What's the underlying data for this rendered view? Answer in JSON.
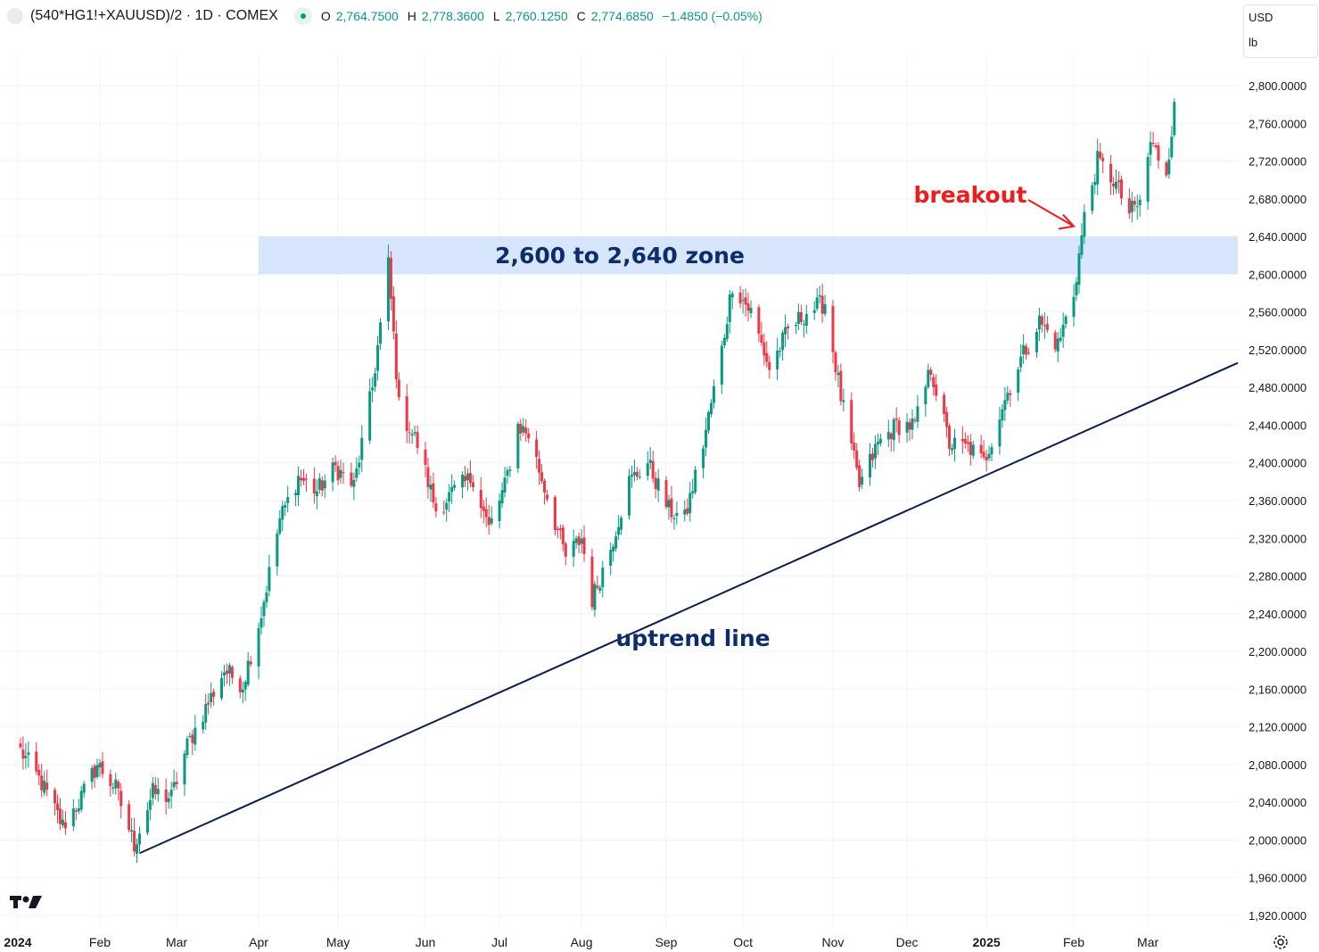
{
  "header": {
    "symbol": "(540*HG1!+XAUUSD)/2 · 1D · COMEX",
    "open_key": "O",
    "open": "2,764.7500",
    "high_key": "H",
    "high": "2,778.3600",
    "low_key": "L",
    "low": "2,760.1250",
    "close_key": "C",
    "close": "2,774.6850",
    "change": "−1.4850 (−0.05%)"
  },
  "units": {
    "currency": "USD",
    "unit": "lb"
  },
  "logo_text": "TV",
  "colors": {
    "up": "#089981",
    "down": "#f23645",
    "trendline": "#0c1d4e",
    "zone": "#d7e5fd",
    "zone_text": "#0c2d6b",
    "breakout": "#ee1c1c",
    "grid": "#f0f3fa",
    "axis_text": "#131722"
  },
  "chart_data": {
    "type": "candlestick",
    "y_axis": {
      "range": [
        1905,
        2830
      ],
      "scale": "linear",
      "ticks": [
        1920,
        1960,
        2000,
        2040,
        2080,
        2120,
        2160,
        2200,
        2240,
        2280,
        2320,
        2360,
        2400,
        2440,
        2480,
        2520,
        2560,
        2600,
        2640,
        2680,
        2720,
        2760,
        2800
      ],
      "tick_labels": [
        "1,920.0000",
        "1,960.0000",
        "2,000.0000",
        "2,040.0000",
        "2,080.0000",
        "2,120.0000",
        "2,160.0000",
        "2,200.0000",
        "2,240.0000",
        "2,280.0000",
        "2,320.0000",
        "2,360.0000",
        "2,400.0000",
        "2,440.0000",
        "2,480.0000",
        "2,520.0000",
        "2,560.0000",
        "2,600.0000",
        "2,640.0000",
        "2,680.0000",
        "2,720.0000",
        "2,760.0000",
        "2,800.0000"
      ]
    },
    "x_axis": {
      "range": [
        "2024-01-01",
        "2025-04-06"
      ],
      "ticks": [
        {
          "date": "2024-01-01",
          "label": "2024",
          "bold": true
        },
        {
          "date": "2024-02-01",
          "label": "Feb"
        },
        {
          "date": "2024-03-01",
          "label": "Mar"
        },
        {
          "date": "2024-04-01",
          "label": "Apr"
        },
        {
          "date": "2024-05-01",
          "label": "May"
        },
        {
          "date": "2024-06-03",
          "label": "Jun"
        },
        {
          "date": "2024-07-01",
          "label": "Jul"
        },
        {
          "date": "2024-08-01",
          "label": "Aug"
        },
        {
          "date": "2024-09-02",
          "label": "Sep"
        },
        {
          "date": "2024-10-01",
          "label": "Oct"
        },
        {
          "date": "2024-11-04",
          "label": "Nov"
        },
        {
          "date": "2024-12-02",
          "label": "Dec"
        },
        {
          "date": "2025-01-01",
          "label": "2025",
          "bold": true
        },
        {
          "date": "2025-02-03",
          "label": "Feb"
        },
        {
          "date": "2025-03-03",
          "label": "Mar"
        }
      ]
    },
    "grid": true,
    "series_anchors": [
      {
        "date": "2024-01-02",
        "close": 2095
      },
      {
        "date": "2024-01-10",
        "close": 2060
      },
      {
        "date": "2024-01-18",
        "close": 2015
      },
      {
        "date": "2024-01-24",
        "close": 2040
      },
      {
        "date": "2024-01-31",
        "close": 2080
      },
      {
        "date": "2024-02-07",
        "close": 2055
      },
      {
        "date": "2024-02-14",
        "close": 1995
      },
      {
        "date": "2024-02-21",
        "close": 2050
      },
      {
        "date": "2024-02-28",
        "close": 2045
      },
      {
        "date": "2024-03-05",
        "close": 2100
      },
      {
        "date": "2024-03-12",
        "close": 2140
      },
      {
        "date": "2024-03-19",
        "close": 2180
      },
      {
        "date": "2024-03-26",
        "close": 2165
      },
      {
        "date": "2024-04-02",
        "close": 2240
      },
      {
        "date": "2024-04-09",
        "close": 2340
      },
      {
        "date": "2024-04-16",
        "close": 2385
      },
      {
        "date": "2024-04-23",
        "close": 2370
      },
      {
        "date": "2024-04-30",
        "close": 2395
      },
      {
        "date": "2024-05-07",
        "close": 2375
      },
      {
        "date": "2024-05-14",
        "close": 2480
      },
      {
        "date": "2024-05-20",
        "close": 2610
      },
      {
        "date": "2024-05-24",
        "close": 2460
      },
      {
        "date": "2024-05-31",
        "close": 2420
      },
      {
        "date": "2024-06-07",
        "close": 2350
      },
      {
        "date": "2024-06-14",
        "close": 2370
      },
      {
        "date": "2024-06-21",
        "close": 2385
      },
      {
        "date": "2024-06-27",
        "close": 2330
      },
      {
        "date": "2024-07-03",
        "close": 2375
      },
      {
        "date": "2024-07-08",
        "close": 2440
      },
      {
        "date": "2024-07-12",
        "close": 2430
      },
      {
        "date": "2024-07-19",
        "close": 2365
      },
      {
        "date": "2024-07-26",
        "close": 2300
      },
      {
        "date": "2024-08-01",
        "close": 2320
      },
      {
        "date": "2024-08-05",
        "close": 2255
      },
      {
        "date": "2024-08-12",
        "close": 2310
      },
      {
        "date": "2024-08-19",
        "close": 2380
      },
      {
        "date": "2024-08-26",
        "close": 2400
      },
      {
        "date": "2024-09-03",
        "close": 2350
      },
      {
        "date": "2024-09-09",
        "close": 2340
      },
      {
        "date": "2024-09-16",
        "close": 2420
      },
      {
        "date": "2024-09-23",
        "close": 2520
      },
      {
        "date": "2024-09-27",
        "close": 2590
      },
      {
        "date": "2024-10-04",
        "close": 2560
      },
      {
        "date": "2024-10-11",
        "close": 2500
      },
      {
        "date": "2024-10-18",
        "close": 2540
      },
      {
        "date": "2024-10-25",
        "close": 2560
      },
      {
        "date": "2024-11-01",
        "close": 2570
      },
      {
        "date": "2024-11-07",
        "close": 2470
      },
      {
        "date": "2024-11-14",
        "close": 2375
      },
      {
        "date": "2024-11-21",
        "close": 2420
      },
      {
        "date": "2024-11-28",
        "close": 2440
      },
      {
        "date": "2024-12-05",
        "close": 2440
      },
      {
        "date": "2024-12-11",
        "close": 2500
      },
      {
        "date": "2024-12-18",
        "close": 2420
      },
      {
        "date": "2024-12-26",
        "close": 2415
      },
      {
        "date": "2024-12-31",
        "close": 2400
      },
      {
        "date": "2025-01-07",
        "close": 2460
      },
      {
        "date": "2025-01-14",
        "close": 2510
      },
      {
        "date": "2025-01-21",
        "close": 2550
      },
      {
        "date": "2025-01-28",
        "close": 2525
      },
      {
        "date": "2025-02-03",
        "close": 2580
      },
      {
        "date": "2025-02-07",
        "close": 2660
      },
      {
        "date": "2025-02-12",
        "close": 2720
      },
      {
        "date": "2025-02-18",
        "close": 2700
      },
      {
        "date": "2025-02-24",
        "close": 2665
      },
      {
        "date": "2025-02-28",
        "close": 2675
      },
      {
        "date": "2025-03-04",
        "close": 2740
      },
      {
        "date": "2025-03-10",
        "close": 2710
      },
      {
        "date": "2025-03-13",
        "close": 2775
      }
    ],
    "zone": {
      "from": 2600,
      "to": 2640,
      "start": "2024-04-01",
      "label": "2,600 to 2,640 zone"
    },
    "trendline": {
      "start": {
        "date": "2024-02-16",
        "value": 1986
      },
      "end": {
        "date": "2025-04-06",
        "value": 2506
      },
      "label": "uptrend line"
    },
    "annotation": {
      "label": "breakout",
      "target": {
        "date": "2025-02-04",
        "value": 2650
      }
    }
  }
}
